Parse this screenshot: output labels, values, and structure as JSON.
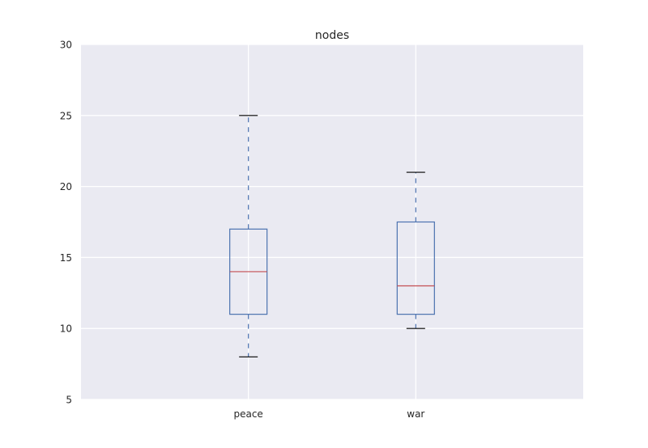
{
  "chart_data": {
    "type": "box",
    "title": "nodes",
    "xlabel": "",
    "ylabel": "",
    "categories": [
      "peace",
      "war"
    ],
    "boxes": [
      {
        "category": "peace",
        "whisker_low": 8,
        "q1": 11,
        "median": 14,
        "q3": 17,
        "whisker_high": 25
      },
      {
        "category": "war",
        "whisker_low": 10,
        "q1": 11,
        "median": 13,
        "q3": 17.5,
        "whisker_high": 21
      }
    ],
    "ylim": [
      5,
      30
    ],
    "yticks": [
      5,
      10,
      15,
      20,
      25,
      30
    ],
    "grid": true,
    "legend": "none",
    "colors": {
      "plot_background": "#EAEAF2",
      "grid": "#FFFFFF",
      "box": "#4C72B0",
      "median": "#C44E52",
      "caps": "#000000"
    }
  }
}
